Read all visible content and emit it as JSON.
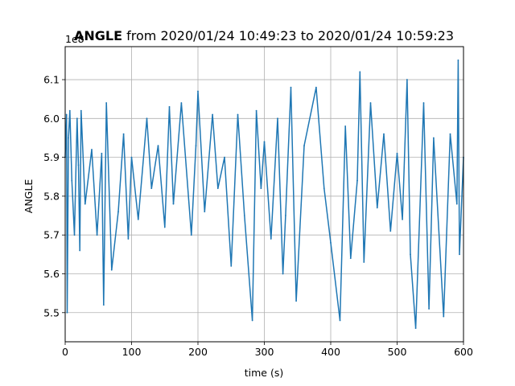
{
  "chart_data": {
    "type": "line",
    "title_bold": "ANGLE",
    "title_rest": " from 2020/01/24 10:49:23 to 2020/01/24 10:59:23",
    "xlabel": "time (s)",
    "ylabel": "ANGLE",
    "offset_text": "1e8",
    "xlim": [
      0,
      600
    ],
    "ylim": [
      5.425,
      6.185
    ],
    "xticks": [
      0,
      100,
      200,
      300,
      400,
      500,
      600
    ],
    "xtick_labels": [
      "0",
      "100",
      "200",
      "300",
      "400",
      "500",
      "600"
    ],
    "yticks": [
      5.5,
      5.6,
      5.7,
      5.8,
      5.9,
      6.0,
      6.1
    ],
    "ytick_labels": [
      "5.5",
      "5.6",
      "5.7",
      "5.8",
      "5.9",
      "6.0",
      "6.1"
    ],
    "grid": true,
    "series_color": "#1f77b4",
    "series": [
      {
        "x": [
          0,
          2,
          3,
          5,
          7,
          10,
          14,
          18,
          20,
          22,
          24,
          30,
          40,
          48,
          55,
          58,
          62,
          70,
          80,
          88,
          95,
          100,
          110,
          123,
          130,
          140,
          150,
          157,
          163,
          175,
          190,
          197,
          200,
          210,
          222,
          230,
          240,
          250,
          260,
          270,
          282,
          288,
          295,
          300,
          310,
          320,
          328,
          332,
          340,
          348,
          360,
          378,
          390,
          400,
          414,
          422,
          430,
          440,
          444,
          450,
          460,
          470,
          480,
          490,
          500,
          508,
          515,
          520,
          528,
          540,
          548,
          555,
          570,
          580,
          590,
          592,
          594,
          600
        ],
        "y": [
          5.9,
          6.01,
          5.5,
          5.95,
          6.02,
          5.84,
          5.7,
          6.0,
          5.88,
          5.66,
          6.02,
          5.78,
          5.92,
          5.7,
          5.91,
          5.52,
          6.04,
          5.61,
          5.76,
          5.96,
          5.69,
          5.9,
          5.74,
          6.0,
          5.82,
          5.93,
          5.72,
          6.03,
          5.78,
          6.04,
          5.7,
          5.93,
          6.07,
          5.76,
          6.01,
          5.82,
          5.9,
          5.62,
          6.01,
          5.75,
          5.48,
          6.02,
          5.82,
          5.94,
          5.69,
          6.0,
          5.6,
          5.75,
          6.08,
          5.53,
          5.93,
          6.08,
          5.82,
          5.68,
          5.48,
          5.98,
          5.64,
          5.84,
          6.12,
          5.63,
          6.04,
          5.77,
          5.96,
          5.71,
          5.91,
          5.74,
          6.1,
          5.65,
          5.46,
          6.04,
          5.51,
          5.95,
          5.49,
          5.96,
          5.78,
          6.15,
          5.65,
          5.9
        ]
      }
    ]
  }
}
